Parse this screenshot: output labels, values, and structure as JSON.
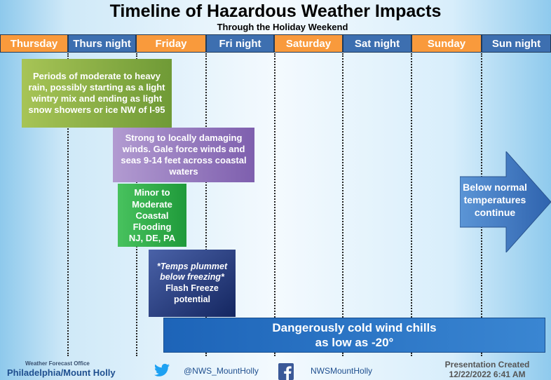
{
  "header": {
    "title": "Timeline of Hazardous Weather Impacts",
    "subtitle": "Through the Holiday Weekend"
  },
  "days": [
    "Thursday",
    "Thurs night",
    "Friday",
    "Fri night",
    "Saturday",
    "Sat night",
    "Sunday",
    "Sun night"
  ],
  "impacts": {
    "rain": "Periods of moderate to heavy rain, possibly starting as a light wintry mix and ending as light snow showers or ice NW of I-95",
    "wind": "Strong to locally damaging winds. Gale force winds and seas 9-14 feet across coastal waters",
    "flood_lines": [
      "Minor to",
      "Moderate",
      "Coastal",
      "Flooding",
      "NJ, DE, PA"
    ],
    "freeze_italic": "*Temps plummet below freezing*",
    "freeze_plain": "Flash Freeze potential",
    "windchill_line1": "Dangerously cold wind chills",
    "windchill_line2": "as low as -20°",
    "temps_lines": [
      "Below normal",
      "temperatures",
      "continue"
    ]
  },
  "colors": {
    "day_orange": "#f99a3c",
    "day_blue": "#3d6fb0",
    "rain": "#8aad45",
    "wind": "#9a80c2",
    "flood": "#2eae48",
    "freeze": "#1e3478",
    "windchill": "#2a74c6",
    "arrow": "#3b73be"
  },
  "footer": {
    "wfo_label": "Weather Forecast Office",
    "office": "Philadelphia/Mount Holly",
    "twitter": "@NWS_MountHolly",
    "facebook": "NWSMountHolly",
    "created_label": "Presentation Created",
    "created_date": "12/22/2022 6:41 AM"
  }
}
